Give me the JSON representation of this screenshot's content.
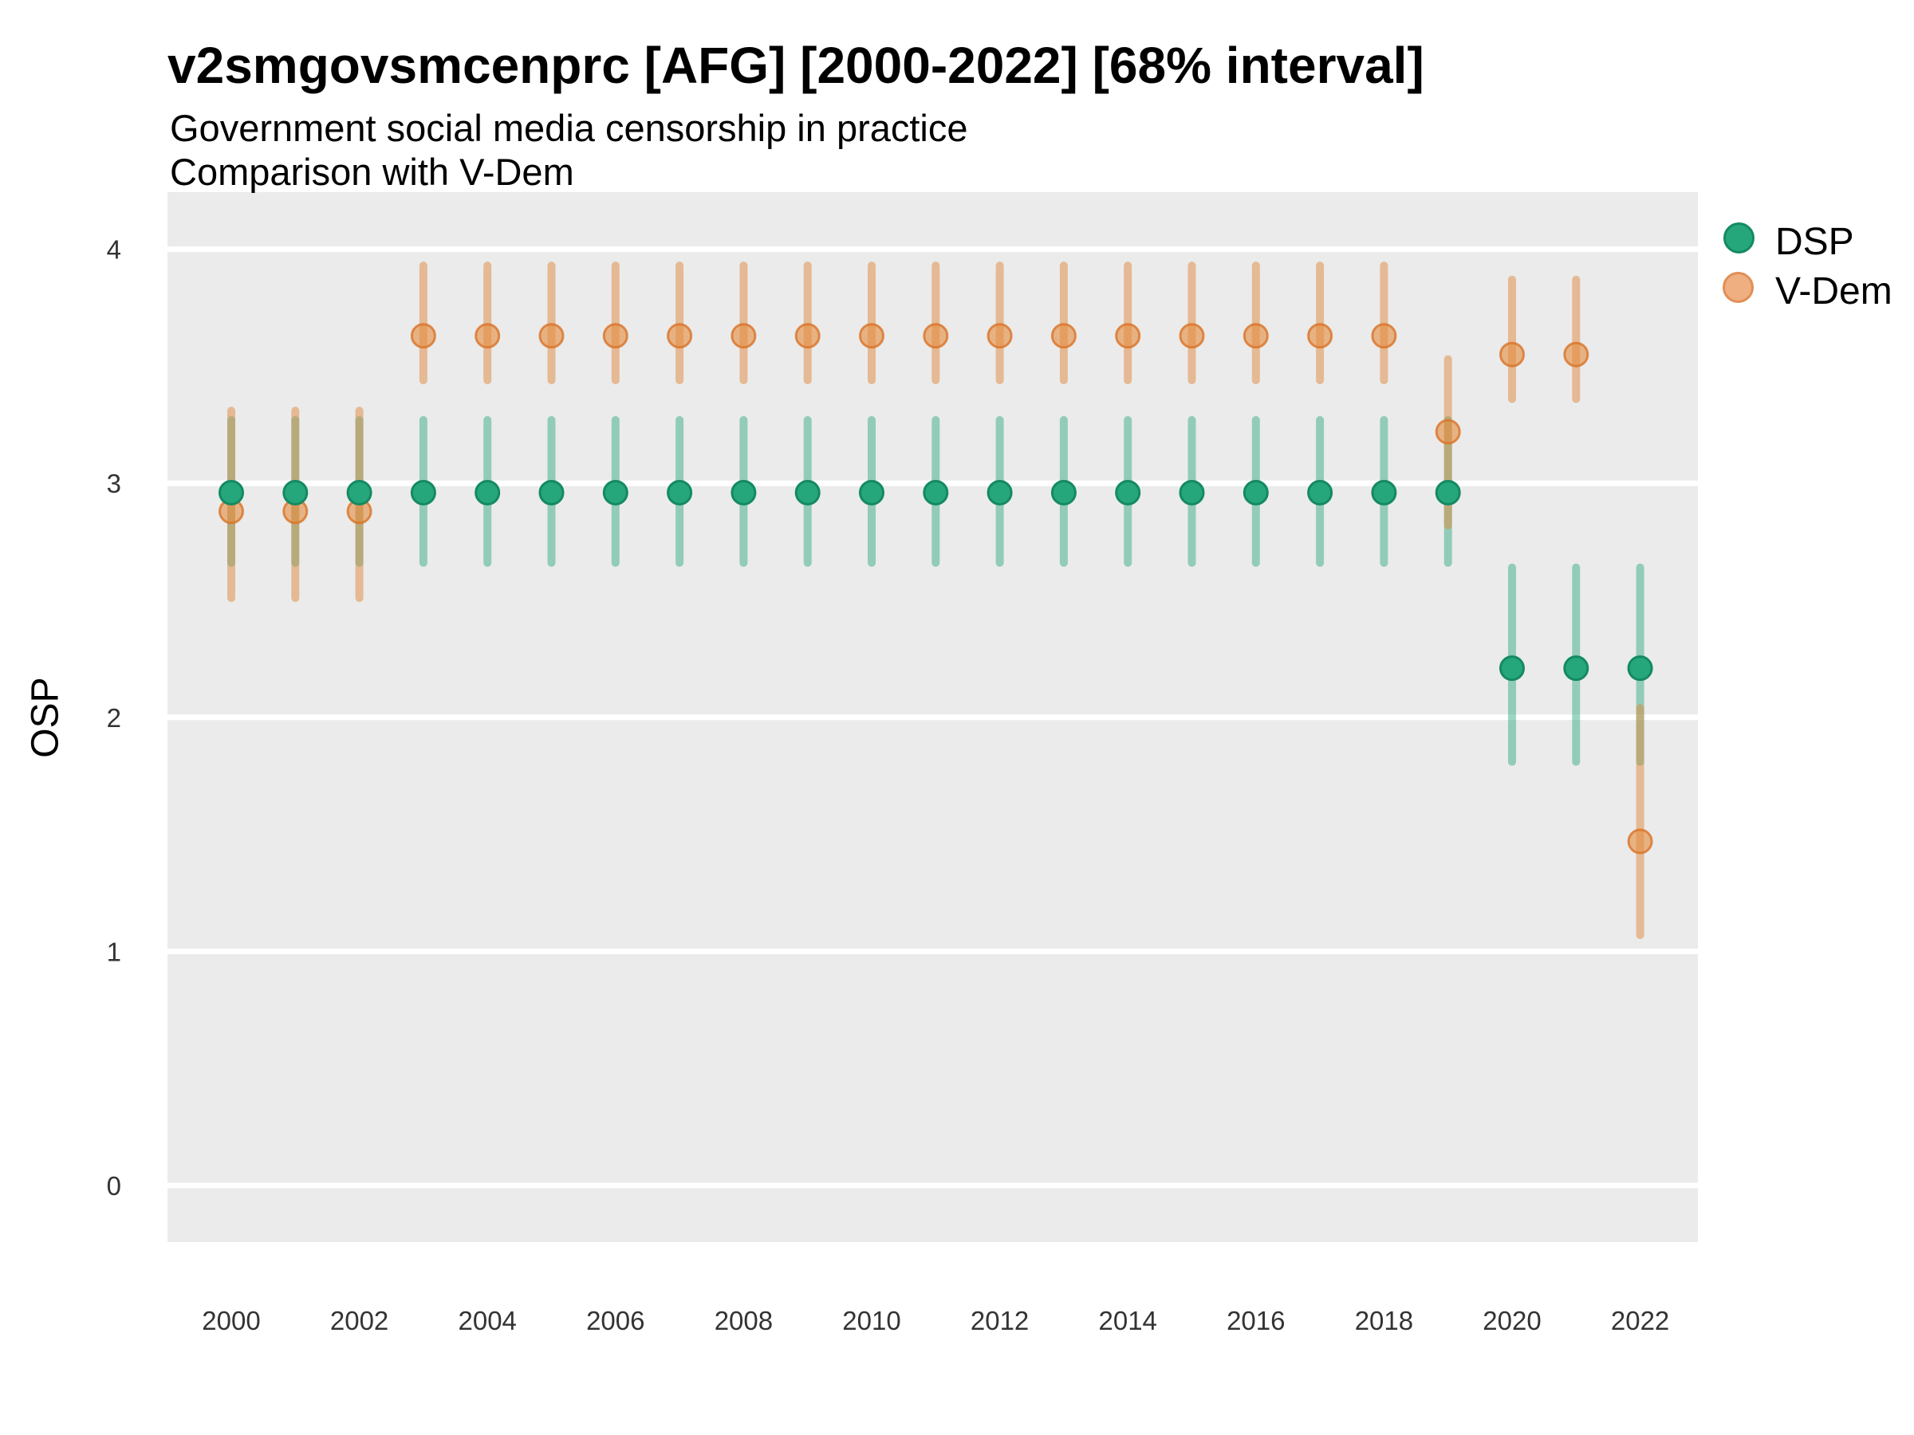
{
  "header": {
    "title": "v2smgovsmcenprc [AFG] [2000-2022] [68% interval]",
    "subtitle_line1": "Government social media censorship in practice",
    "subtitle_line2": "Comparison with V-Dem"
  },
  "y_axis": {
    "label": "OSP"
  },
  "legend": {
    "items": [
      {
        "label": "DSP",
        "color": "#26A67B",
        "stroke": "#148A62"
      },
      {
        "label": "V-Dem",
        "color": "#F0AF80",
        "stroke": "#E08F55"
      }
    ]
  },
  "colors": {
    "panel_bg": "#EBEBEB",
    "grid": "#FFFFFF",
    "tick_text": "#333333",
    "dsp_fill": "#26A67B",
    "dsp_stroke": "#148A62",
    "dsp_bar": "rgba(38,166,123,0.45)",
    "vdem_fill": "rgba(229,140,62,0.60)",
    "vdem_stroke": "rgba(217,115,40,0.80)",
    "vdem_bar": "rgba(224,136,60,0.50)"
  },
  "chart_data": {
    "type": "scatter",
    "title": "v2smgovsmcenprc [AFG] [2000-2022] [68% interval]",
    "subtitle": "Government social media censorship in practice — Comparison with V-Dem",
    "interval": "68%",
    "xlabel": "",
    "ylabel": "OSP",
    "ylim": [
      -0.24,
      4.24
    ],
    "y_ticks": [
      0,
      1,
      2,
      3,
      4
    ],
    "x_ticks": [
      2000,
      2002,
      2004,
      2006,
      2008,
      2010,
      2012,
      2014,
      2016,
      2018,
      2020,
      2022
    ],
    "grid": "major-horizontal",
    "legend_position": "right",
    "x": [
      2000,
      2001,
      2002,
      2003,
      2004,
      2005,
      2006,
      2007,
      2008,
      2009,
      2010,
      2011,
      2012,
      2013,
      2014,
      2015,
      2016,
      2017,
      2018,
      2019,
      2020,
      2021,
      2022
    ],
    "series": [
      {
        "name": "DSP",
        "est": [
          2.96,
          2.96,
          2.96,
          2.96,
          2.96,
          2.96,
          2.96,
          2.96,
          2.96,
          2.96,
          2.96,
          2.96,
          2.96,
          2.96,
          2.96,
          2.96,
          2.96,
          2.96,
          2.96,
          2.96,
          2.21,
          2.21,
          2.21
        ],
        "lo": [
          2.66,
          2.66,
          2.66,
          2.66,
          2.66,
          2.66,
          2.66,
          2.66,
          2.66,
          2.66,
          2.66,
          2.66,
          2.66,
          2.66,
          2.66,
          2.66,
          2.66,
          2.66,
          2.66,
          2.66,
          1.81,
          1.81,
          1.81
        ],
        "hi": [
          3.27,
          3.27,
          3.27,
          3.27,
          3.27,
          3.27,
          3.27,
          3.27,
          3.27,
          3.27,
          3.27,
          3.27,
          3.27,
          3.27,
          3.27,
          3.27,
          3.27,
          3.27,
          3.27,
          3.27,
          2.64,
          2.64,
          2.64
        ]
      },
      {
        "name": "V-Dem",
        "est": [
          2.88,
          2.88,
          2.88,
          3.63,
          3.63,
          3.63,
          3.63,
          3.63,
          3.63,
          3.63,
          3.63,
          3.63,
          3.63,
          3.63,
          3.63,
          3.63,
          3.63,
          3.63,
          3.63,
          3.22,
          3.55,
          3.55,
          1.47
        ],
        "lo": [
          2.51,
          2.51,
          2.51,
          3.44,
          3.44,
          3.44,
          3.44,
          3.44,
          3.44,
          3.44,
          3.44,
          3.44,
          3.44,
          3.44,
          3.44,
          3.44,
          3.44,
          3.44,
          3.44,
          2.82,
          3.36,
          3.36,
          1.07
        ],
        "hi": [
          3.31,
          3.31,
          3.31,
          3.93,
          3.93,
          3.93,
          3.93,
          3.93,
          3.93,
          3.93,
          3.93,
          3.93,
          3.93,
          3.93,
          3.93,
          3.93,
          3.93,
          3.93,
          3.93,
          3.53,
          3.87,
          3.87,
          2.04
        ]
      }
    ]
  }
}
